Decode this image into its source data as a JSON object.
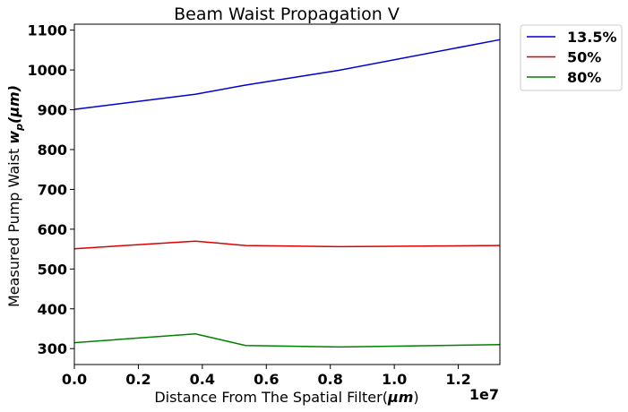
{
  "chart_data": {
    "type": "line",
    "title": "Beam Waist Propagation V",
    "xlabel": {
      "prefix": "Distance From The Spatial Filter(",
      "unit": "μm",
      "suffix": ")"
    },
    "ylabel": {
      "prefix": "Measured Pump Waist ",
      "var": "w",
      "sub": "p",
      "unit": "(μm)"
    },
    "x_offset_label": "1e7",
    "xlim": [
      0,
      13300000
    ],
    "ylim": [
      260,
      1115
    ],
    "xticks": [
      0,
      2000000,
      4000000,
      6000000,
      8000000,
      10000000,
      12000000
    ],
    "xtick_labels": [
      "0.0",
      "0.2",
      "0.4",
      "0.6",
      "0.8",
      "1.0",
      "1.2"
    ],
    "yticks": [
      300,
      400,
      500,
      600,
      700,
      800,
      900,
      1000,
      1100
    ],
    "ytick_labels": [
      "300",
      "400",
      "500",
      "600",
      "700",
      "800",
      "900",
      "1000",
      "1100"
    ],
    "x": [
      0,
      3780000,
      5350000,
      8250000,
      13300000
    ],
    "series": [
      {
        "name": "13.5%",
        "color": "#0000cc",
        "values": [
          901,
          939,
          962,
          999,
          1076
        ]
      },
      {
        "name": "50%",
        "color": "#dd0000",
        "values": [
          551,
          570,
          559,
          556,
          559
        ]
      },
      {
        "name": "80%",
        "color": "#008000",
        "values": [
          315,
          337,
          308,
          304,
          310
        ]
      }
    ],
    "legend_position": "outside-upper-right",
    "grid": false
  }
}
